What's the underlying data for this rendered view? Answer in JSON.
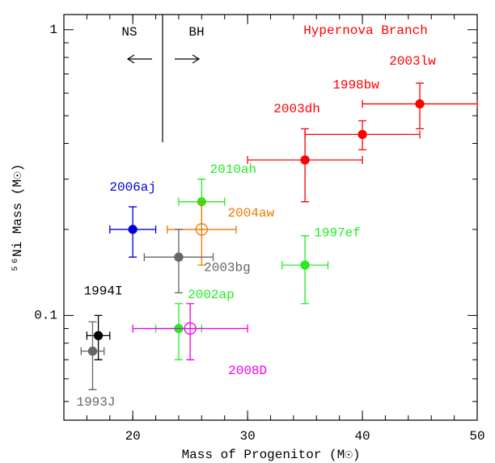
{
  "chart_data": {
    "type": "scatter",
    "xlabel": "Mass of Progenitor (M☉)",
    "ylabel": "⁵⁶Ni Mass (M☉)",
    "annotations": {
      "left": "NS",
      "right": "BH",
      "branch": "Hypernova Branch"
    },
    "branch_color": "#ff0000",
    "xlim": [
      14,
      50
    ],
    "xticks": [
      20,
      30,
      40,
      50
    ],
    "ylim": [
      0.043,
      1.13
    ],
    "yticks": [
      0.1,
      1
    ],
    "ylog": true,
    "points": [
      {
        "name": "2003lw",
        "color": "#ff0000",
        "x": 45,
        "xerr": 5,
        "y": 0.55,
        "yerr": 0.1,
        "open": false
      },
      {
        "name": "1998bw",
        "color": "#ff0000",
        "x": 40,
        "xerr": 5,
        "y": 0.43,
        "yerr": 0.05,
        "open": false
      },
      {
        "name": "2003dh",
        "color": "#ff0000",
        "x": 35,
        "xerr": 5,
        "y": 0.35,
        "yerr": 0.1,
        "open": false
      },
      {
        "name": "2010ah",
        "color": "#22ee22",
        "x": 26,
        "xerr": 2,
        "y": 0.25,
        "yerr": 0.05,
        "open": false
      },
      {
        "name": "2006aj",
        "color": "#0000dd",
        "x": 20,
        "xerr": 2,
        "y": 0.2,
        "yerr": 0.04,
        "open": false
      },
      {
        "name": "2004aw",
        "color": "#ee7700",
        "x": 26,
        "xerr": 3,
        "y": 0.2,
        "yerr": 0.05,
        "open": true
      },
      {
        "name": "2003bg",
        "color": "#666666",
        "x": 24,
        "xerr": 3,
        "y": 0.16,
        "yerr": 0.04,
        "open": false
      },
      {
        "name": "1997ef",
        "color": "#22ee22",
        "x": 35,
        "xerr": 2,
        "y": 0.15,
        "yerr": 0.04,
        "open": false
      },
      {
        "name": "2002ap",
        "color": "#22ee22",
        "x": 24,
        "xerr": 2,
        "y": 0.09,
        "yerr": 0.02,
        "open": false
      },
      {
        "name": "2008D",
        "color": "#ee00ee",
        "x": 25,
        "xerr": 5,
        "y": 0.09,
        "yerr": 0.02,
        "open": true
      },
      {
        "name": "1994I",
        "color": "#000000",
        "x": 17,
        "xerr": 1,
        "y": 0.085,
        "yerr": 0.015,
        "open": false
      },
      {
        "name": "1993J",
        "color": "#666666",
        "x": 16.5,
        "xerr": 1,
        "y": 0.075,
        "yerr": 0.02,
        "open": false
      }
    ]
  }
}
